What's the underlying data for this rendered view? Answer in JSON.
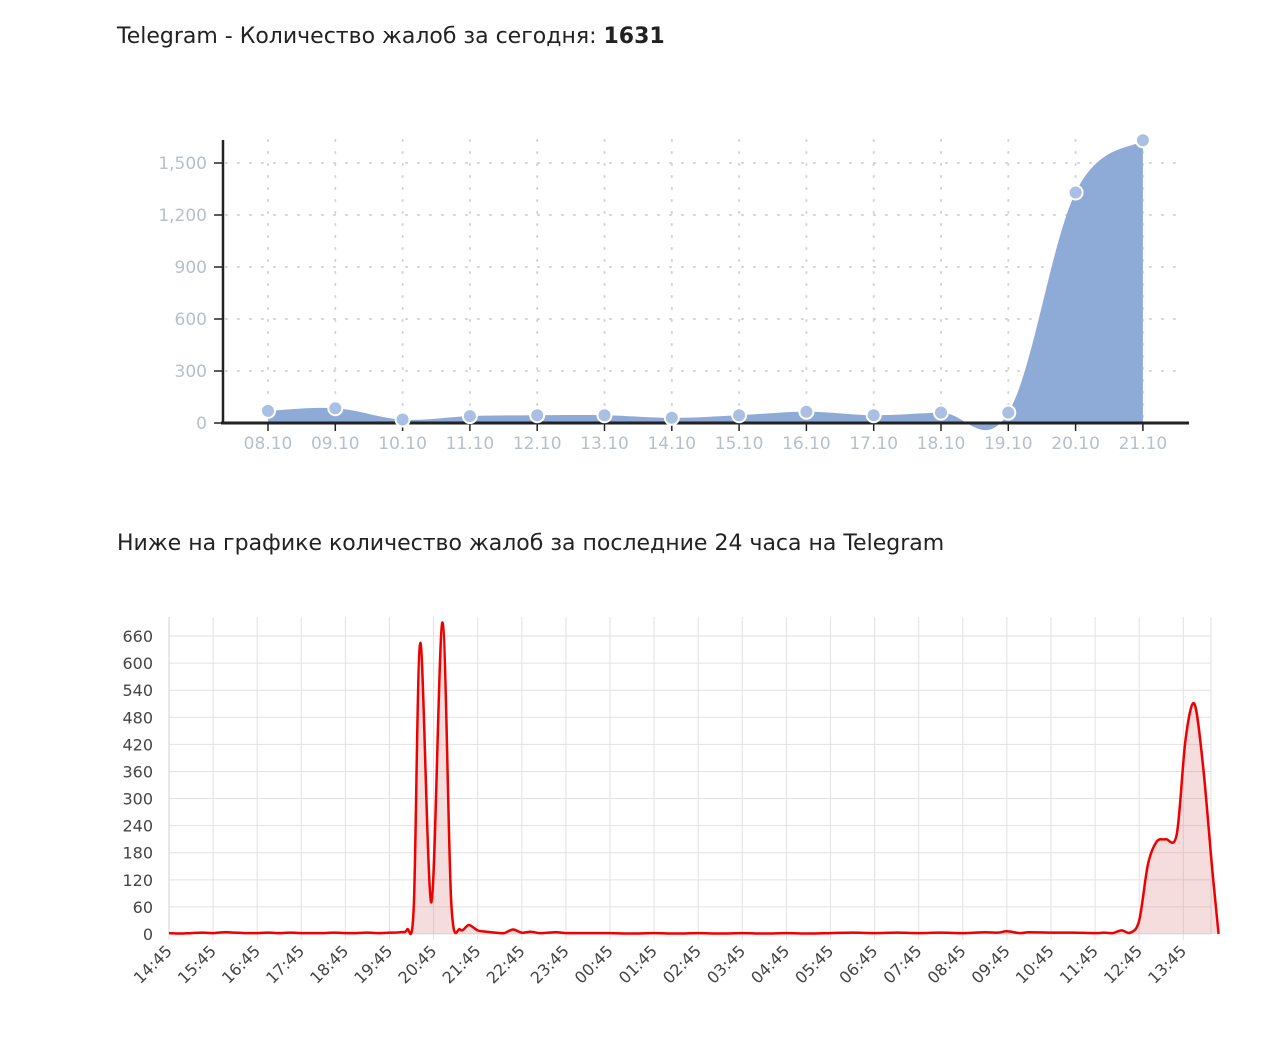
{
  "heading1": {
    "text": "Telegram - Количество жалоб за сегодня: ",
    "count": "1631"
  },
  "heading2": {
    "text": "Ниже на графике количество жалоб за последние 24 часа на Telegram"
  },
  "chart_data": [
    {
      "type": "area",
      "title": "",
      "xlabel": "",
      "ylabel": "",
      "categories": [
        "08.10",
        "09.10",
        "10.10",
        "11.10",
        "12.10",
        "13.10",
        "14.10",
        "15.10",
        "16.10",
        "17.10",
        "18.10",
        "19.10",
        "20.10",
        "21.10"
      ],
      "values": [
        70,
        85,
        20,
        40,
        45,
        45,
        30,
        45,
        65,
        45,
        60,
        60,
        1330,
        1631
      ],
      "ylim": [
        0,
        1631
      ],
      "yticks": [
        "0",
        "300",
        "600",
        "900",
        "1,200",
        "1,500"
      ],
      "ytick_values": [
        0,
        300,
        600,
        900,
        1200,
        1500
      ],
      "grid": "dotted",
      "color": "#8eaad6",
      "marker_color": "#a9bfe3"
    },
    {
      "type": "area",
      "title": "",
      "xlabel": "",
      "ylabel": "",
      "x_labels": [
        "14:45",
        "15:45",
        "16:45",
        "17:45",
        "18:45",
        "19:45",
        "20:45",
        "21:45",
        "22:45",
        "23:45",
        "00:45",
        "01:45",
        "02:45",
        "03:45",
        "04:45",
        "05:45",
        "06:45",
        "07:45",
        "08:45",
        "09:45",
        "10:45",
        "11:45",
        "12:45",
        "13:45"
      ],
      "points": [
        [
          0,
          2
        ],
        [
          0.25,
          1
        ],
        [
          0.5,
          2
        ],
        [
          0.75,
          3
        ],
        [
          1,
          2
        ],
        [
          1.25,
          4
        ],
        [
          1.5,
          3
        ],
        [
          1.75,
          2
        ],
        [
          2,
          2
        ],
        [
          2.25,
          3
        ],
        [
          2.5,
          2
        ],
        [
          2.75,
          3
        ],
        [
          3,
          2
        ],
        [
          3.25,
          2
        ],
        [
          3.5,
          2
        ],
        [
          3.75,
          3
        ],
        [
          4,
          2
        ],
        [
          4.25,
          2
        ],
        [
          4.5,
          3
        ],
        [
          4.75,
          2
        ],
        [
          5,
          3
        ],
        [
          5.25,
          4
        ],
        [
          5.4,
          10
        ],
        [
          5.55,
          60
        ],
        [
          5.7,
          645
        ],
        [
          5.95,
          70
        ],
        [
          6.2,
          690
        ],
        [
          6.4,
          70
        ],
        [
          6.6,
          10
        ],
        [
          6.8,
          20
        ],
        [
          7.0,
          8
        ],
        [
          7.2,
          5
        ],
        [
          7.4,
          3
        ],
        [
          7.6,
          2
        ],
        [
          7.8,
          10
        ],
        [
          8.0,
          3
        ],
        [
          8.2,
          5
        ],
        [
          8.4,
          2
        ],
        [
          8.6,
          3
        ],
        [
          8.8,
          4
        ],
        [
          9.0,
          2
        ],
        [
          9.5,
          2
        ],
        [
          10,
          2
        ],
        [
          10.5,
          1
        ],
        [
          11,
          2
        ],
        [
          11.5,
          1
        ],
        [
          12,
          2
        ],
        [
          12.5,
          1
        ],
        [
          13,
          2
        ],
        [
          13.5,
          1
        ],
        [
          14,
          2
        ],
        [
          14.5,
          1
        ],
        [
          15,
          2
        ],
        [
          15.5,
          3
        ],
        [
          16,
          2
        ],
        [
          16.5,
          3
        ],
        [
          17,
          2
        ],
        [
          17.5,
          3
        ],
        [
          18,
          2
        ],
        [
          18.5,
          4
        ],
        [
          18.8,
          3
        ],
        [
          19.0,
          6
        ],
        [
          19.3,
          2
        ],
        [
          19.5,
          4
        ],
        [
          20,
          3
        ],
        [
          20.5,
          3
        ],
        [
          21,
          2
        ],
        [
          21.2,
          3
        ],
        [
          21.4,
          2
        ],
        [
          21.6,
          8
        ],
        [
          21.8,
          3
        ],
        [
          22.0,
          30
        ],
        [
          22.2,
          155
        ],
        [
          22.4,
          205
        ],
        [
          22.6,
          210
        ],
        [
          22.85,
          220
        ],
        [
          23.05,
          430
        ],
        [
          23.25,
          510
        ],
        [
          23.45,
          370
        ],
        [
          23.65,
          150
        ],
        [
          23.8,
          0
        ]
      ],
      "xlim": [
        0,
        23.8
      ],
      "ylim": [
        0,
        700
      ],
      "yticks": [
        "0",
        "60",
        "120",
        "180",
        "240",
        "300",
        "360",
        "420",
        "480",
        "540",
        "600",
        "660"
      ],
      "ytick_values": [
        0,
        60,
        120,
        180,
        240,
        300,
        360,
        420,
        480,
        540,
        600,
        660
      ],
      "grid": "solid",
      "color": "#ee0000",
      "fill": "rgba(220,120,120,0.25)"
    }
  ]
}
